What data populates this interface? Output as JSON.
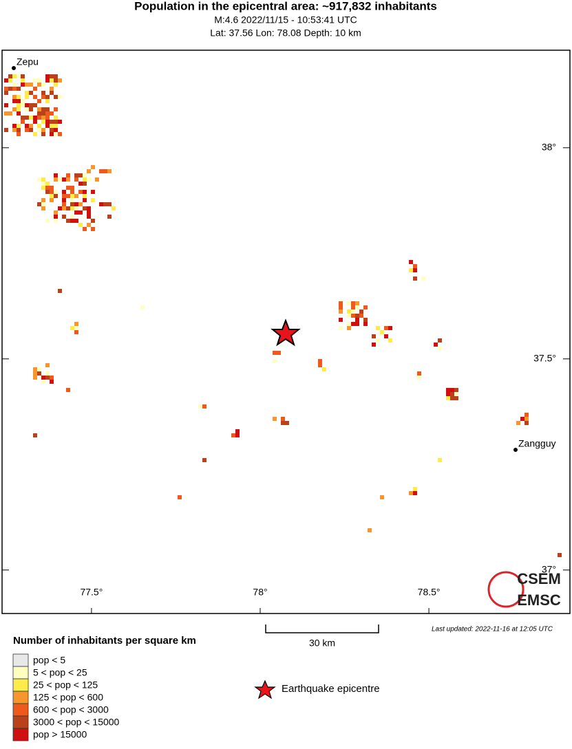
{
  "header": {
    "title": "Population in the epicentral area: ~917,832 inhabitants",
    "subtitle": "M:4.6 2022/11/15 - 10:53:41 UTC",
    "details": "Lat: 37.56 Lon: 78.08 Depth: 10 km"
  },
  "map": {
    "xlim": [
      77.235,
      78.918
    ],
    "ylim": [
      36.897,
      38.231
    ],
    "xticks": [
      {
        "value": 77.5,
        "label": "77.5°"
      },
      {
        "value": 78,
        "label": "78°"
      },
      {
        "value": 78.5,
        "label": "78.5°"
      }
    ],
    "yticks": [
      {
        "value": 37,
        "label": "37°"
      },
      {
        "value": 37.5,
        "label": "37.5°"
      },
      {
        "value": 38,
        "label": "38°"
      }
    ],
    "places": [
      "Zepu",
      "Zangguy"
    ],
    "scale_bar": "30 km",
    "last_updated": "Last updated: 2022-11-16 at 12:05 UTC",
    "logo": [
      "CSEM",
      "EMSC"
    ]
  },
  "legend": {
    "title": "Number of inhabitants per square km",
    "items": [
      {
        "label": "pop < 5",
        "color": "#e8e8e8"
      },
      {
        "label": "5 < pop < 25",
        "color": "#ffffc0"
      },
      {
        "label": "25 < pop < 125",
        "color": "#ffec4a"
      },
      {
        "label": "125 < pop < 600",
        "color": "#f8962e"
      },
      {
        "label": "600 < pop < 3000",
        "color": "#ee5a1c"
      },
      {
        "label": "3000 < pop < 15000",
        "color": "#b9421a"
      },
      {
        "label": "pop > 15000",
        "color": "#d01010"
      }
    ],
    "epicentre": "Earthquake epicentre"
  }
}
